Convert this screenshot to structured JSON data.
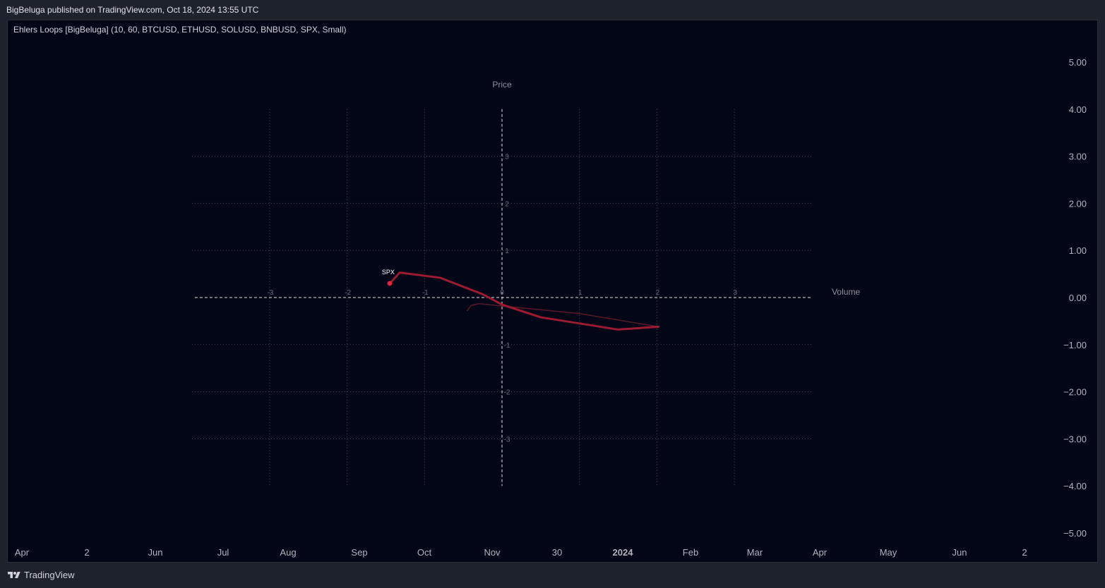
{
  "header": {
    "published": "BigBeluga published on TradingView.com, Oct 18, 2024 13:55 UTC"
  },
  "indicator": {
    "title": "Ehlers Loops [BigBeluga] (10, 60, BTCUSD, ETHUSD, SOLUSD, BNBUSD, SPX, Small)"
  },
  "footer": {
    "brand": "TradingView",
    "logo_icon": "tradingview-logo-icon"
  },
  "colors": {
    "background": "#020617",
    "frame": "#1e222d",
    "series": "#9b1c31",
    "series_faded": "#5a1a2a",
    "point": "#e0243d",
    "grid": "#50535e",
    "axis_text": "#b2b5be"
  },
  "chart_data": {
    "type": "line",
    "title": "",
    "xlabel": "Volume",
    "ylabel": "Price",
    "xlim": [
      -3,
      3
    ],
    "ylim": [
      -4,
      4
    ],
    "inner_x_ticks": [
      "-3",
      "-2",
      "-1",
      "0",
      "1",
      "2",
      "3"
    ],
    "inner_y_ticks": [
      "3",
      "2",
      "1",
      "-1",
      "-2",
      "-3"
    ],
    "grid": true,
    "series": [
      {
        "name": "SPX",
        "x": [
          -1.45,
          -1.32,
          -0.8,
          -0.25,
          0.0,
          0.5,
          1.5,
          2.02
        ],
        "y": [
          0.3,
          0.53,
          0.42,
          0.07,
          -0.15,
          -0.42,
          -0.68,
          -0.62
        ]
      },
      {
        "name": "",
        "x": [
          2.02,
          1.0,
          0.0,
          -0.3,
          -0.4,
          -0.45
        ],
        "y": [
          -0.62,
          -0.34,
          -0.18,
          -0.13,
          -0.17,
          -0.28
        ]
      }
    ],
    "right_axis_ticks": [
      "5.00",
      "4.00",
      "3.00",
      "2.00",
      "1.00",
      "0.00",
      "−1.00",
      "−2.00",
      "−3.00",
      "−4.00",
      "−5.00"
    ],
    "right_axis_values": [
      5,
      4,
      3,
      2,
      1,
      0,
      -1,
      -2,
      -3,
      -4,
      -5
    ],
    "time_axis_ticks": [
      {
        "label": "Apr",
        "bold": false
      },
      {
        "label": "2",
        "bold": false
      },
      {
        "label": "Jun",
        "bold": false
      },
      {
        "label": "Jul",
        "bold": false
      },
      {
        "label": "Aug",
        "bold": false
      },
      {
        "label": "Sep",
        "bold": false
      },
      {
        "label": "Oct",
        "bold": false
      },
      {
        "label": "Nov",
        "bold": false
      },
      {
        "label": "30",
        "bold": false
      },
      {
        "label": "2024",
        "bold": true
      },
      {
        "label": "Feb",
        "bold": false
      },
      {
        "label": "Mar",
        "bold": false
      },
      {
        "label": "Apr",
        "bold": false
      },
      {
        "label": "May",
        "bold": false
      },
      {
        "label": "Jun",
        "bold": false
      },
      {
        "label": "2",
        "bold": false
      }
    ]
  }
}
